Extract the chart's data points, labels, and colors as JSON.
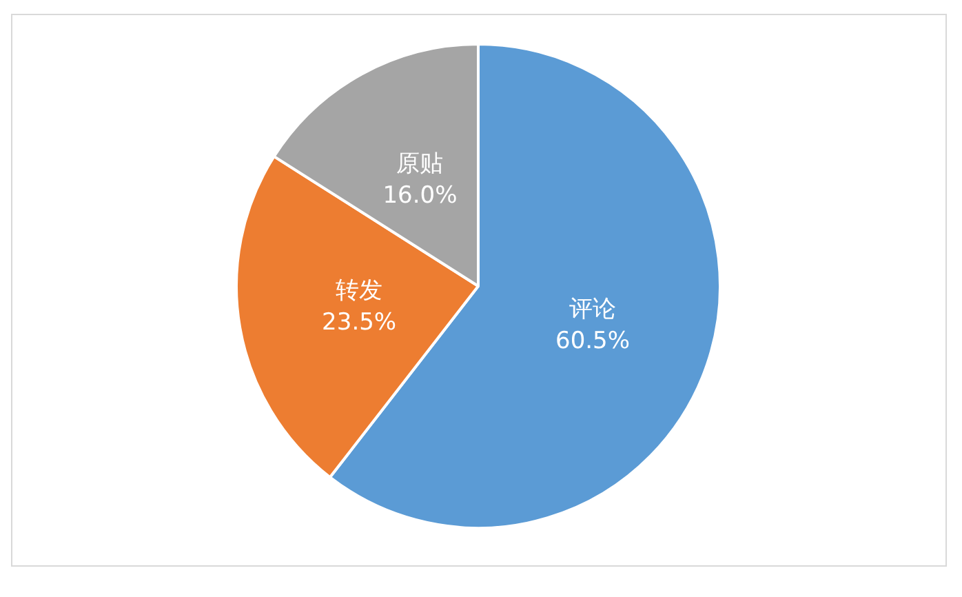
{
  "chart_data": {
    "type": "pie",
    "categories": [
      "评论",
      "转发",
      "原贴"
    ],
    "values": [
      60.5,
      23.5,
      16.0
    ],
    "colors": [
      "#5b9bd5",
      "#ed7d31",
      "#a5a5a5"
    ],
    "value_labels": [
      "60.5%",
      "23.5%",
      "16.0%"
    ],
    "legend": false
  }
}
